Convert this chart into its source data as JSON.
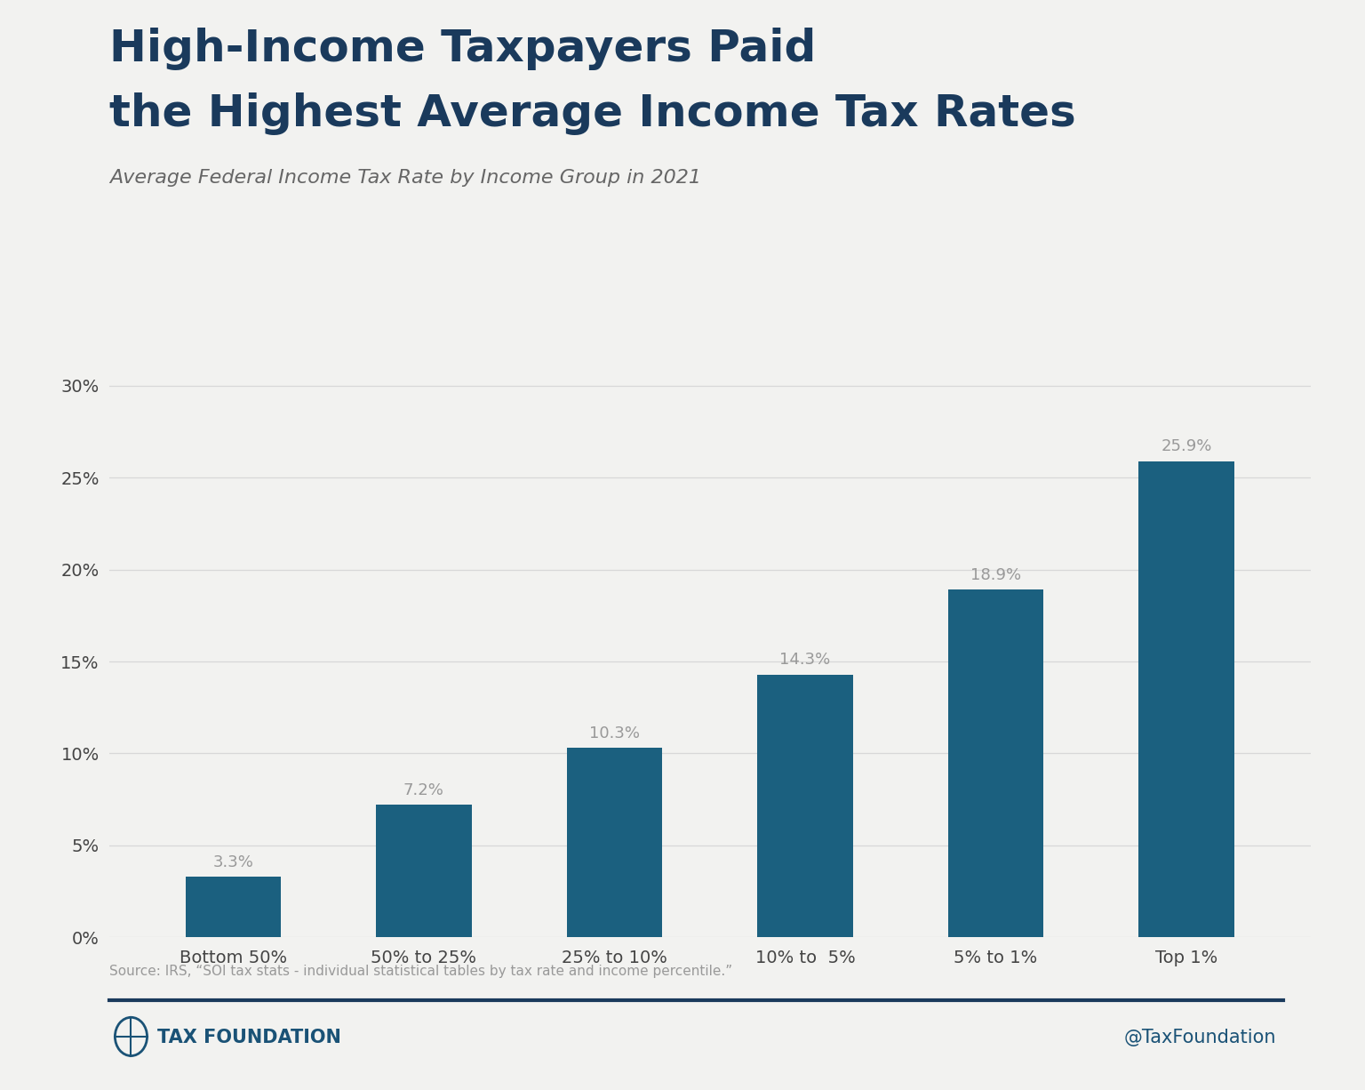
{
  "title_line1": "High-Income Taxpayers Paid",
  "title_line2": "the Highest Average Income Tax Rates",
  "subtitle": "Average Federal Income Tax Rate by Income Group in 2021",
  "categories": [
    "Bottom 50%",
    "50% to 25%",
    "25% to 10%",
    "10% to  5%",
    "5% to 1%",
    "Top 1%"
  ],
  "values": [
    3.3,
    7.2,
    10.3,
    14.3,
    18.9,
    25.9
  ],
  "bar_color": "#1B607F",
  "background_color": "#f2f2f0",
  "plot_bg_color": "#f2f2f0",
  "title_color": "#1a3a5c",
  "subtitle_color": "#666666",
  "tick_label_color": "#444444",
  "value_label_color": "#999999",
  "grid_color": "#d8d8d8",
  "source_text": "Source: IRS, “SOI tax stats - individual statistical tables by tax rate and income percentile.”",
  "source_color": "#999999",
  "footer_line_color": "#1a3a5c",
  "footer_left": "TAX FOUNDATION",
  "footer_right": "@TaxFoundation",
  "footer_color": "#1a5276",
  "ylim": [
    0,
    32
  ],
  "yticks": [
    0,
    5,
    10,
    15,
    20,
    25,
    30
  ],
  "figsize": [
    15.36,
    12.26
  ],
  "dpi": 100
}
